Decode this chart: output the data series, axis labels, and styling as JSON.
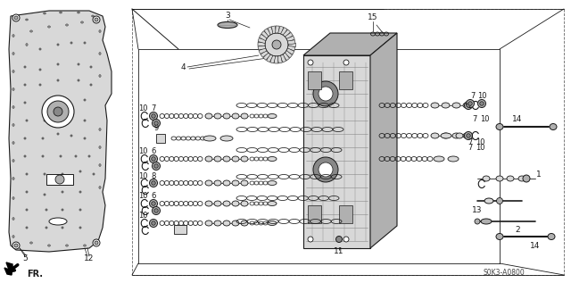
{
  "background_color": "#ffffff",
  "line_color": "#1a1a1a",
  "gray_light": "#d8d8d8",
  "gray_mid": "#b0b0b0",
  "gray_dark": "#888888",
  "diagram_code": "S0K3-A0800",
  "dashed_color": "#666666"
}
